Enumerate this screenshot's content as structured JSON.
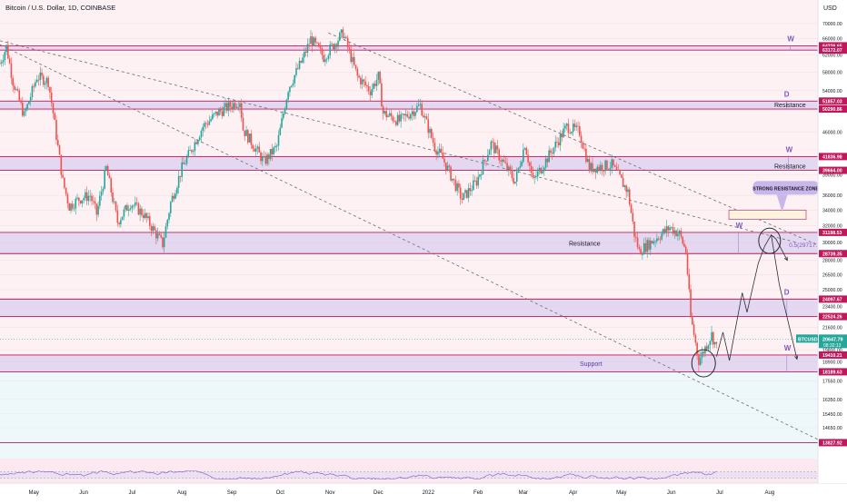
{
  "header": {
    "title": "Bitcoin / U.S. Dollar, 1D, COINBASE",
    "currency": "USD"
  },
  "chart_data": {
    "type": "candlestick",
    "symbol": "BTCUSD",
    "timeframe": "1D",
    "y_scale": "log",
    "y_range": [
      13000,
      73000
    ],
    "x_range": [
      "2021-04-10",
      "2022-08-31"
    ],
    "price_ticks": [
      70000,
      66000,
      62000,
      58000,
      54000,
      50000,
      46000,
      42000,
      39000,
      36000,
      34000,
      32000,
      30000,
      28000,
      26500,
      25000,
      23400,
      21600,
      19800,
      18900,
      17550,
      16350,
      15450,
      14650
    ],
    "price_tick_labels": [
      "70000.00",
      "66000.00",
      "62000.00",
      "58000.00",
      "54000.00",
      "50000.00",
      "46000.00",
      "42000.00",
      "39000.00",
      "36000.00",
      "34000.00",
      "32000.00",
      "30000.00",
      "28000.00",
      "26500.00",
      "25000.00",
      "23400.00",
      "21600.00",
      "19800.00",
      "18900.00",
      "17550.00",
      "16350.00",
      "15450.00",
      "14650.00"
    ],
    "month_labels": [
      {
        "label": "May",
        "date": "2021-05-01"
      },
      {
        "label": "Jun",
        "date": "2021-06-01"
      },
      {
        "label": "Jul",
        "date": "2021-07-01"
      },
      {
        "label": "Aug",
        "date": "2021-08-01"
      },
      {
        "label": "Sep",
        "date": "2021-09-01"
      },
      {
        "label": "Oct",
        "date": "2021-10-01"
      },
      {
        "label": "Nov",
        "date": "2021-11-01"
      },
      {
        "label": "Dec",
        "date": "2021-12-01"
      },
      {
        "label": "2022",
        "date": "2022-01-01"
      },
      {
        "label": "Feb",
        "date": "2022-02-01"
      },
      {
        "label": "Mar",
        "date": "2022-03-01"
      },
      {
        "label": "Apr",
        "date": "2022-04-01"
      },
      {
        "label": "May",
        "date": "2022-05-01"
      },
      {
        "label": "Jun",
        "date": "2022-06-01"
      },
      {
        "label": "Jul",
        "date": "2022-07-01"
      },
      {
        "label": "Aug",
        "date": "2022-08-01"
      }
    ],
    "levels": [
      {
        "price": 64226.65,
        "label": "64226.65"
      },
      {
        "price": 63172.07,
        "label": "63172.07"
      },
      {
        "price": 51857.03,
        "label": "51857.03"
      },
      {
        "price": 50290.86,
        "label": "50290.86"
      },
      {
        "price": 41836.98,
        "label": "41836.98"
      },
      {
        "price": 39664.0,
        "label": "39664.00"
      },
      {
        "price": 31198.53,
        "label": "31198.53"
      },
      {
        "price": 28739.35,
        "label": "28739.35"
      },
      {
        "price": 24097.67,
        "label": "24097.67"
      },
      {
        "price": 22524.26,
        "label": "22524.26"
      },
      {
        "price": 19410.21,
        "label": "19410.21"
      },
      {
        "price": 18189.63,
        "label": "18189.63"
      },
      {
        "price": 13827.92,
        "label": "13827.92"
      }
    ],
    "current_price": {
      "tag": "BTCUSD",
      "value": "20647.79",
      "countdown": "08:32:13",
      "price": 20647.79
    },
    "zones": [
      {
        "top": 64226.65,
        "bottom": 63172.07,
        "label": "",
        "letter": "W",
        "letter_date": "2022-08-12"
      },
      {
        "top": 51857.03,
        "bottom": 50290.86,
        "label": "Resistance",
        "letter": "D",
        "letter_date": "2022-08-10"
      },
      {
        "top": 41836.98,
        "bottom": 39664.0,
        "label": "Resistance",
        "letter": "W",
        "letter_date": "2022-08-11"
      },
      {
        "top": 31198.53,
        "bottom": 28739.35,
        "label": "Resistance",
        "letter": "W",
        "letter_date": "2022-07-11"
      },
      {
        "top": 24097.67,
        "bottom": 22524.26,
        "label": "",
        "letter": "D",
        "letter_date": "2022-08-10"
      },
      {
        "top": 19410.21,
        "bottom": 18189.63,
        "label": "Support",
        "letter": "W",
        "letter_date": "2022-08-10"
      }
    ],
    "annotations": {
      "strong_zone_label": "STRONG RESISTANCE ZONE",
      "fib_label": "0.5(29717.15)",
      "fib_price": 29717.15
    },
    "ohlc_anchors": [
      [
        "2021-04-10",
        60000
      ],
      [
        "2021-04-14",
        64000
      ],
      [
        "2021-04-18",
        56000
      ],
      [
        "2021-04-25",
        49000
      ],
      [
        "2021-05-03",
        57000
      ],
      [
        "2021-05-10",
        56000
      ],
      [
        "2021-05-13",
        49500
      ],
      [
        "2021-05-19",
        38000
      ],
      [
        "2021-05-23",
        34500
      ],
      [
        "2021-05-29",
        35500
      ],
      [
        "2021-06-05",
        36000
      ],
      [
        "2021-06-09",
        33500
      ],
      [
        "2021-06-15",
        40000
      ],
      [
        "2021-06-22",
        32500
      ],
      [
        "2021-06-30",
        35000
      ],
      [
        "2021-07-08",
        33500
      ],
      [
        "2021-07-20",
        29800
      ],
      [
        "2021-07-25",
        35000
      ],
      [
        "2021-08-01",
        40000
      ],
      [
        "2021-08-14",
        47000
      ],
      [
        "2021-08-23",
        49500
      ],
      [
        "2021-09-06",
        52000
      ],
      [
        "2021-09-08",
        46500
      ],
      [
        "2021-09-21",
        41000
      ],
      [
        "2021-09-29",
        43500
      ],
      [
        "2021-10-06",
        54500
      ],
      [
        "2021-10-15",
        61000
      ],
      [
        "2021-10-20",
        66000
      ],
      [
        "2021-10-28",
        61500
      ],
      [
        "2021-11-09",
        67500
      ],
      [
        "2021-11-18",
        57000
      ],
      [
        "2021-11-26",
        54000
      ],
      [
        "2021-12-01",
        57000
      ],
      [
        "2021-12-04",
        49500
      ],
      [
        "2021-12-14",
        48000
      ],
      [
        "2021-12-27",
        51000
      ],
      [
        "2022-01-05",
        43500
      ],
      [
        "2022-01-10",
        41500
      ],
      [
        "2022-01-22",
        35500
      ],
      [
        "2022-01-31",
        38000
      ],
      [
        "2022-02-09",
        44000
      ],
      [
        "2022-02-24",
        38000
      ],
      [
        "2022-03-02",
        44000
      ],
      [
        "2022-03-07",
        38000
      ],
      [
        "2022-03-28",
        47000
      ],
      [
        "2022-04-05",
        46000
      ],
      [
        "2022-04-11",
        40000
      ],
      [
        "2022-04-25",
        40500
      ],
      [
        "2022-05-05",
        36500
      ],
      [
        "2022-05-09",
        31000
      ],
      [
        "2022-05-12",
        29000
      ],
      [
        "2022-05-31",
        31800
      ],
      [
        "2022-06-06",
        31000
      ],
      [
        "2022-06-10",
        29000
      ],
      [
        "2022-06-13",
        22500
      ],
      [
        "2022-06-18",
        19000
      ],
      [
        "2022-06-26",
        21000
      ],
      [
        "2022-06-29",
        20000
      ]
    ],
    "projection_path": [
      [
        "2022-06-29",
        19300
      ],
      [
        "2022-07-03",
        21200
      ],
      [
        "2022-07-07",
        19000
      ],
      [
        "2022-07-15",
        24700
      ],
      [
        "2022-07-18",
        22900
      ],
      [
        "2022-07-25",
        27700
      ],
      [
        "2022-07-29",
        29600
      ],
      [
        "2022-08-02",
        30900
      ],
      [
        "2022-08-05",
        30400
      ],
      [
        "2022-08-12",
        28000
      ]
    ],
    "projection_path_2": [
      [
        "2022-08-02",
        30900
      ],
      [
        "2022-08-07",
        25500
      ],
      [
        "2022-08-18",
        19100
      ]
    ],
    "trend_lines": [
      {
        "p1": [
          "2021-04-10",
          64500
        ],
        "p2": [
          "2022-08-31",
          14000
        ]
      },
      {
        "p1": [
          "2021-04-10",
          65500
        ],
        "p2": [
          "2022-08-18",
          30000
        ]
      },
      {
        "p1": [
          "2021-10-31",
          67500
        ],
        "p2": [
          "2022-08-31",
          29700
        ]
      }
    ],
    "rsi_pane": {
      "y_range": [
        0,
        100
      ],
      "bands": [
        30,
        70
      ]
    }
  }
}
